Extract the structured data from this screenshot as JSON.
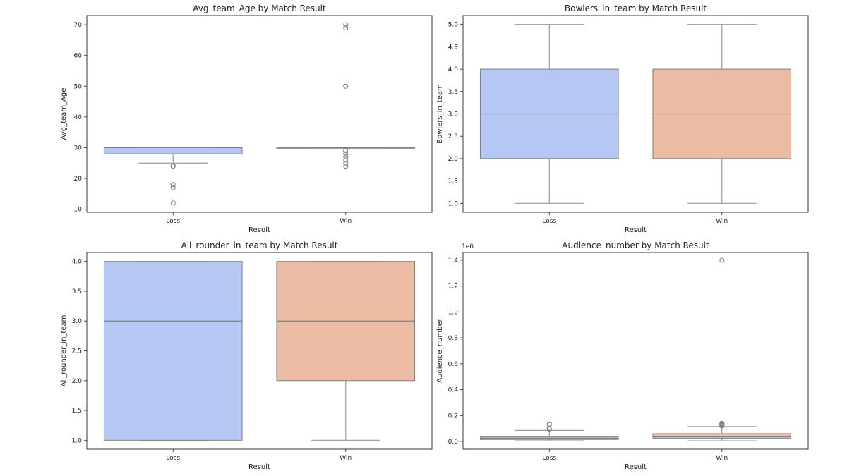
{
  "chart_data": [
    {
      "type": "box",
      "title": "Avg_team_Age by Match Result",
      "xlabel": "Result",
      "ylabel": "Avg_team_Age",
      "categories": [
        "Loss",
        "Win"
      ],
      "ylim": [
        9,
        73
      ],
      "yticks": [
        10,
        20,
        30,
        40,
        50,
        60,
        70
      ],
      "tick_labels": [
        "10",
        "20",
        "30",
        "40",
        "50",
        "60",
        "70"
      ],
      "grid": false,
      "boxes": [
        {
          "category": "Loss",
          "color": "#b4c8f3",
          "whislo": 25,
          "q1": 28,
          "med": 30,
          "q3": 30,
          "whishi": 30,
          "fliers": [
            24,
            24,
            24,
            18,
            17,
            12
          ]
        },
        {
          "category": "Win",
          "color": "#ecbba4",
          "whislo": 30,
          "q1": 30,
          "med": 30,
          "q3": 30,
          "whishi": 30,
          "fliers": [
            70,
            69,
            50,
            29,
            28,
            27,
            26,
            25,
            24
          ]
        }
      ]
    },
    {
      "type": "box",
      "title": "Bowlers_in_team by Match Result",
      "xlabel": "Result",
      "ylabel": "Bowlers_in_team",
      "categories": [
        "Loss",
        "Win"
      ],
      "ylim": [
        0.8,
        5.2
      ],
      "yticks": [
        1.0,
        1.5,
        2.0,
        2.5,
        3.0,
        3.5,
        4.0,
        4.5,
        5.0
      ],
      "tick_labels": [
        "1.0",
        "1.5",
        "2.0",
        "2.5",
        "3.0",
        "3.5",
        "4.0",
        "4.5",
        "5.0"
      ],
      "grid": false,
      "boxes": [
        {
          "category": "Loss",
          "color": "#b4c8f3",
          "whislo": 1,
          "q1": 2,
          "med": 3,
          "q3": 4,
          "whishi": 5,
          "fliers": []
        },
        {
          "category": "Win",
          "color": "#ecbba4",
          "whislo": 1,
          "q1": 2,
          "med": 3,
          "q3": 4,
          "whishi": 5,
          "fliers": []
        }
      ]
    },
    {
      "type": "box",
      "title": "All_rounder_in_team by Match Result",
      "xlabel": "Result",
      "ylabel": "All_rounder_in_team",
      "categories": [
        "Loss",
        "Win"
      ],
      "ylim": [
        0.85,
        4.15
      ],
      "yticks": [
        1.0,
        1.5,
        2.0,
        2.5,
        3.0,
        3.5,
        4.0
      ],
      "tick_labels": [
        "1.0",
        "1.5",
        "2.0",
        "2.5",
        "3.0",
        "3.5",
        "4.0"
      ],
      "grid": false,
      "boxes": [
        {
          "category": "Loss",
          "color": "#b4c8f3",
          "whislo": 1,
          "q1": 1,
          "med": 3,
          "q3": 4,
          "whishi": 4,
          "fliers": []
        },
        {
          "category": "Win",
          "color": "#ecbba4",
          "whislo": 1,
          "q1": 2,
          "med": 3,
          "q3": 4,
          "whishi": 4,
          "fliers": []
        }
      ]
    },
    {
      "type": "box",
      "title": "Audience_number by Match Result",
      "xlabel": "Result",
      "ylabel": "Audience_number",
      "offset_label": "1e6",
      "categories": [
        "Loss",
        "Win"
      ],
      "ylim": [
        -0.06,
        1.46
      ],
      "yticks": [
        0.0,
        0.2,
        0.4,
        0.6,
        0.8,
        1.0,
        1.2,
        1.4
      ],
      "tick_labels": [
        "0.0",
        "0.2",
        "0.4",
        "0.6",
        "0.8",
        "1.0",
        "1.2",
        "1.4"
      ],
      "grid": false,
      "boxes": [
        {
          "category": "Loss",
          "color": "#b4c8f3",
          "whislo": 0.005,
          "q1": 0.015,
          "med": 0.025,
          "q3": 0.04,
          "whishi": 0.085,
          "fliers": [
            0.095,
            0.1,
            0.13,
            0.135
          ]
        },
        {
          "category": "Win",
          "color": "#ecbba4",
          "whislo": 0.005,
          "q1": 0.025,
          "med": 0.04,
          "q3": 0.06,
          "whishi": 0.115,
          "fliers": [
            0.12,
            0.125,
            0.13,
            0.135,
            0.14,
            1.4
          ]
        }
      ]
    }
  ]
}
